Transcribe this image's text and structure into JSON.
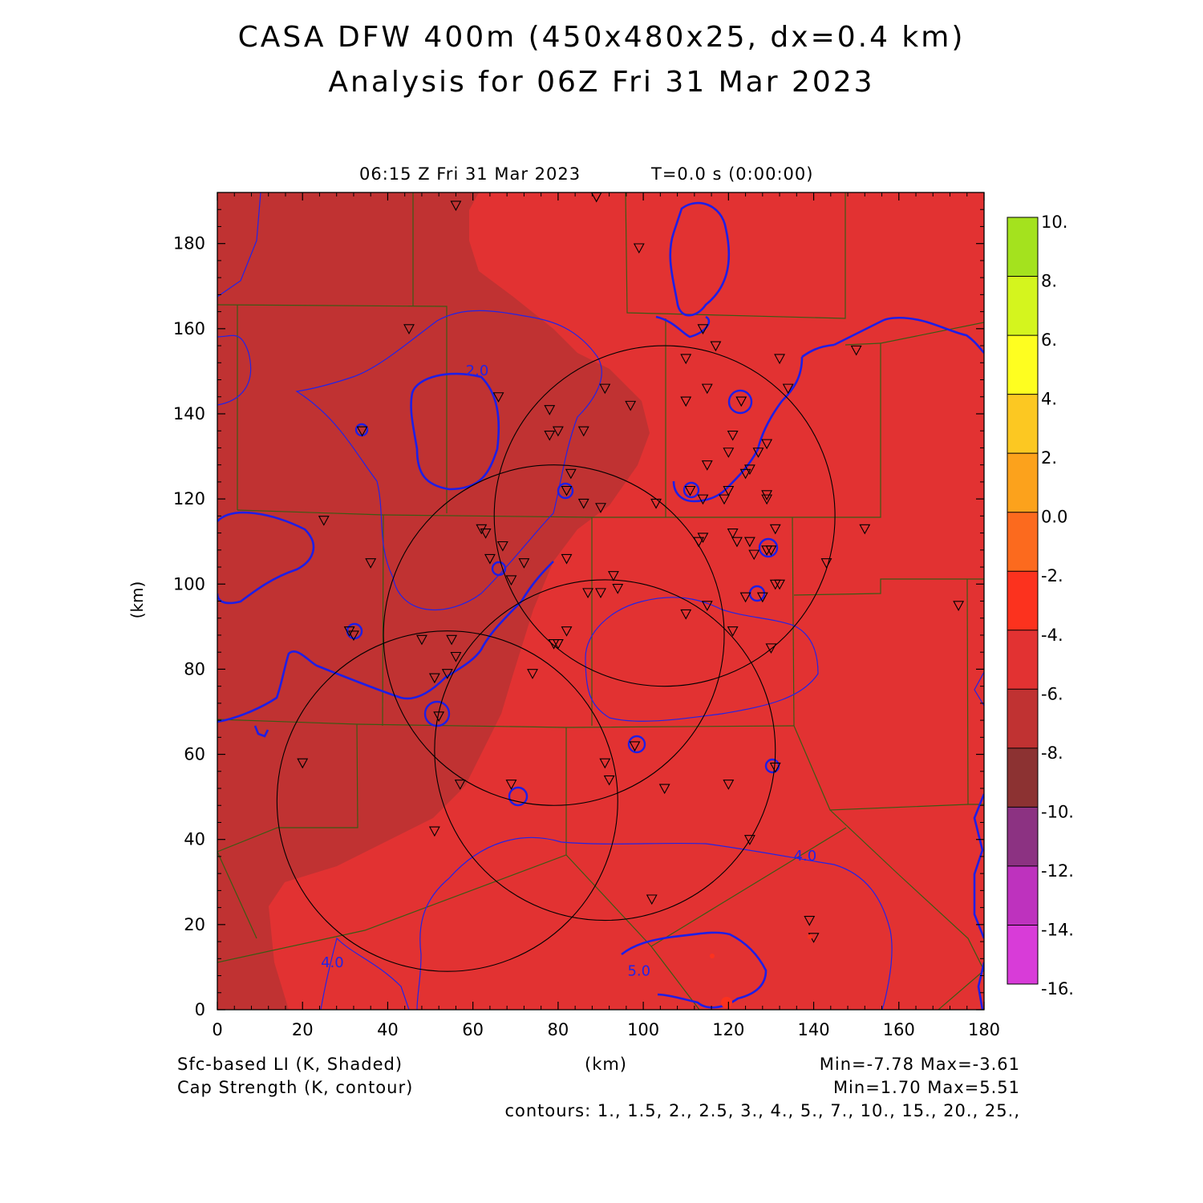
{
  "header": {
    "title_line1": "CASA DFW 400m (450x480x25, dx=0.4 km)",
    "title_line2": "Analysis for 06Z Fri 31 Mar 2023",
    "valid_time": "06:15 Z Fri 31 Mar 2023",
    "model_time": "T=0.0 s (0:00:00)"
  },
  "footer": {
    "shaded_label": "Sfc-based LI (K, Shaded)",
    "contour_label": "Cap Strength (K, contour)",
    "xunit": "(km)",
    "shaded_minmax": "Min=-7.78 Max=-3.61",
    "contour_minmax": "Min=1.70 Max=5.51",
    "contours_line": "contours: 1., 1.5, 2., 2.5, 3., 4., 5., 7., 10., 15., 20., 25.,"
  },
  "chart_data": {
    "type": "heatmap",
    "xlabel": "(km)",
    "ylabel": "(km)",
    "xlim": [
      0,
      180
    ],
    "ylim": [
      0,
      192
    ],
    "xticks": [
      0,
      20,
      40,
      60,
      80,
      100,
      120,
      140,
      160,
      180
    ],
    "yticks": [
      0,
      20,
      40,
      60,
      80,
      100,
      120,
      140,
      160,
      180
    ],
    "shaded_field": "Sfc-based LI (K, Shaded)",
    "shaded_min": -7.78,
    "shaded_max": -3.61,
    "contour_field": "Cap Strength (K, contour)",
    "contour_min": 1.7,
    "contour_max": 5.51,
    "contour_levels": [
      1,
      1.5,
      2,
      2.5,
      3,
      4,
      5,
      7,
      10,
      15,
      20,
      25
    ],
    "contour_labels": [
      {
        "text": "2.0",
        "x": 61,
        "y": 149
      },
      {
        "text": "4.0",
        "x": 138,
        "y": 35
      },
      {
        "text": "4.0",
        "x": 27,
        "y": 10
      },
      {
        "text": "5.0",
        "x": 99,
        "y": 8
      }
    ],
    "colorbar": {
      "labels": [
        "10.",
        "8.",
        "6.",
        "4.",
        "2.",
        "0.0",
        "-2.",
        "-4.",
        "-6.",
        "-8.",
        "-10.",
        "-12.",
        "-14.",
        "-16."
      ],
      "colors": [
        "#a4e21e",
        "#d4f51e",
        "#fefe20",
        "#fcc822",
        "#fca21c",
        "#fc6a1e",
        "#fc321e",
        "#e23232",
        "#c03232",
        "#8c3232",
        "#8c3282",
        "#be32be",
        "#d83cd8"
      ]
    },
    "region_colors": {
      "west_zone": "#c03232",
      "east_zone": "#e23232",
      "county_lines": "#3c5a14",
      "cap_contour": "#1e1ee6",
      "radar_rings": "#000000"
    },
    "radar_rings": [
      {
        "cx": 105,
        "cy": 116,
        "r": 40
      },
      {
        "cx": 79,
        "cy": 88,
        "r": 40
      },
      {
        "cx": 91,
        "cy": 61,
        "r": 40
      },
      {
        "cx": 54,
        "cy": 49,
        "r": 40
      }
    ],
    "stations": [
      [
        56,
        189
      ],
      [
        89,
        191
      ],
      [
        99,
        179
      ],
      [
        45,
        160
      ],
      [
        114,
        160
      ],
      [
        117,
        156
      ],
      [
        132,
        153
      ],
      [
        110,
        153
      ],
      [
        150,
        155
      ],
      [
        115,
        146
      ],
      [
        134,
        146
      ],
      [
        66,
        144
      ],
      [
        78,
        141
      ],
      [
        91,
        146
      ],
      [
        97,
        142
      ],
      [
        110,
        143
      ],
      [
        123,
        143
      ],
      [
        34,
        136
      ],
      [
        80,
        136
      ],
      [
        78,
        135
      ],
      [
        86,
        136
      ],
      [
        121,
        135
      ],
      [
        129,
        133
      ],
      [
        127,
        131
      ],
      [
        120,
        131
      ],
      [
        115,
        128
      ],
      [
        83,
        126
      ],
      [
        125,
        127
      ],
      [
        124,
        126
      ],
      [
        129,
        121
      ],
      [
        82,
        122
      ],
      [
        111,
        122
      ],
      [
        114,
        120
      ],
      [
        120,
        122
      ],
      [
        119,
        120
      ],
      [
        129,
        120
      ],
      [
        86,
        119
      ],
      [
        90,
        118
      ],
      [
        103,
        119
      ],
      [
        25,
        115
      ],
      [
        62,
        113
      ],
      [
        63,
        112
      ],
      [
        114,
        111
      ],
      [
        113,
        110
      ],
      [
        121,
        112
      ],
      [
        125,
        110
      ],
      [
        122,
        110
      ],
      [
        131,
        113
      ],
      [
        130,
        108
      ],
      [
        126,
        107
      ],
      [
        129,
        108
      ],
      [
        152,
        113
      ],
      [
        67,
        109
      ],
      [
        64,
        106
      ],
      [
        72,
        105
      ],
      [
        82,
        106
      ],
      [
        143,
        105
      ],
      [
        36,
        105
      ],
      [
        69,
        101
      ],
      [
        93,
        102
      ],
      [
        94,
        99
      ],
      [
        132,
        100
      ],
      [
        131,
        100
      ],
      [
        87,
        98
      ],
      [
        124,
        97
      ],
      [
        128,
        97
      ],
      [
        90,
        98
      ],
      [
        115,
        95
      ],
      [
        110,
        93
      ],
      [
        174,
        95
      ],
      [
        31,
        89
      ],
      [
        32,
        88
      ],
      [
        82,
        89
      ],
      [
        48,
        87
      ],
      [
        55,
        87
      ],
      [
        80,
        86
      ],
      [
        79,
        86
      ],
      [
        56,
        83
      ],
      [
        121,
        89
      ],
      [
        130,
        85
      ],
      [
        74,
        79
      ],
      [
        54,
        79
      ],
      [
        51,
        78
      ],
      [
        52,
        69
      ],
      [
        20,
        58
      ],
      [
        91,
        58
      ],
      [
        98,
        62
      ],
      [
        131,
        57
      ],
      [
        92,
        54
      ],
      [
        69,
        53
      ],
      [
        57,
        53
      ],
      [
        120,
        53
      ],
      [
        105,
        52
      ],
      [
        51,
        42
      ],
      [
        125,
        40
      ],
      [
        102,
        26
      ],
      [
        139,
        21
      ],
      [
        140,
        17
      ]
    ]
  }
}
